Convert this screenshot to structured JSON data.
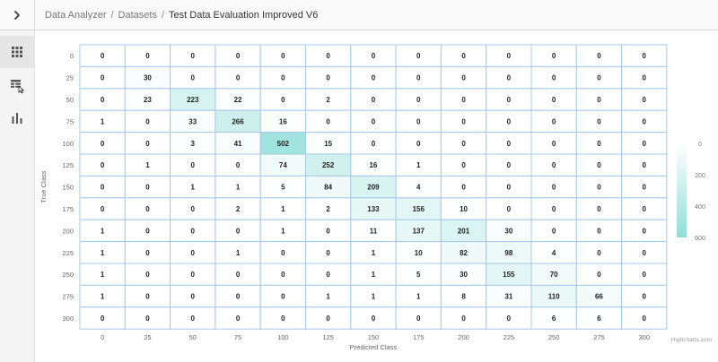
{
  "header": {
    "toggle_icon": "chevron-right-icon",
    "breadcrumb": {
      "items": [
        "Data Analyzer",
        "Datasets",
        "Test Data Evaluation Improved V6"
      ],
      "separator": "/"
    }
  },
  "sidebar": {
    "items": [
      {
        "name": "grid-icon",
        "active": true
      },
      {
        "name": "table-icon",
        "active": false
      },
      {
        "name": "bar-chart-icon",
        "active": false
      }
    ]
  },
  "credits": "Highcharts.com",
  "chart_data": {
    "type": "heatmap",
    "title": "",
    "xlabel": "Predicted Class",
    "ylabel": "True Class",
    "x_categories": [
      "0",
      "25",
      "50",
      "75",
      "100",
      "125",
      "150",
      "175",
      "200",
      "225",
      "250",
      "275",
      "300"
    ],
    "y_categories": [
      "0",
      "25",
      "50",
      "75",
      "100",
      "125",
      "150",
      "175",
      "200",
      "225",
      "250",
      "275",
      "300"
    ],
    "values": [
      [
        0,
        0,
        0,
        0,
        0,
        0,
        0,
        0,
        0,
        0,
        0,
        0,
        0
      ],
      [
        0,
        30,
        0,
        0,
        0,
        0,
        0,
        0,
        0,
        0,
        0,
        0,
        0
      ],
      [
        0,
        23,
        223,
        22,
        0,
        2,
        0,
        0,
        0,
        0,
        0,
        0,
        0
      ],
      [
        1,
        0,
        33,
        266,
        16,
        0,
        0,
        0,
        0,
        0,
        0,
        0,
        0
      ],
      [
        0,
        0,
        3,
        41,
        502,
        15,
        0,
        0,
        0,
        0,
        0,
        0,
        0
      ],
      [
        0,
        1,
        0,
        0,
        74,
        252,
        16,
        1,
        0,
        0,
        0,
        0,
        0
      ],
      [
        0,
        0,
        1,
        1,
        5,
        84,
        209,
        4,
        0,
        0,
        0,
        0,
        0
      ],
      [
        0,
        0,
        0,
        2,
        1,
        2,
        133,
        156,
        10,
        0,
        0,
        0,
        0
      ],
      [
        1,
        0,
        0,
        0,
        1,
        0,
        11,
        137,
        201,
        30,
        0,
        0,
        0
      ],
      [
        1,
        0,
        0,
        1,
        0,
        0,
        1,
        10,
        82,
        98,
        4,
        0,
        0
      ],
      [
        1,
        0,
        0,
        0,
        0,
        0,
        1,
        5,
        30,
        155,
        70,
        0,
        0
      ],
      [
        1,
        0,
        0,
        0,
        0,
        1,
        1,
        1,
        8,
        31,
        110,
        66,
        0
      ],
      [
        0,
        0,
        0,
        0,
        0,
        0,
        0,
        0,
        0,
        0,
        6,
        6,
        0
      ]
    ],
    "color_axis": {
      "min": 0,
      "max": 600,
      "ticks": [
        "0",
        "200",
        "400",
        "600"
      ],
      "min_color": "#ffffff",
      "max_color": "#8fded7"
    },
    "grid_color": "#a7c8e6",
    "legend_position": "right"
  }
}
